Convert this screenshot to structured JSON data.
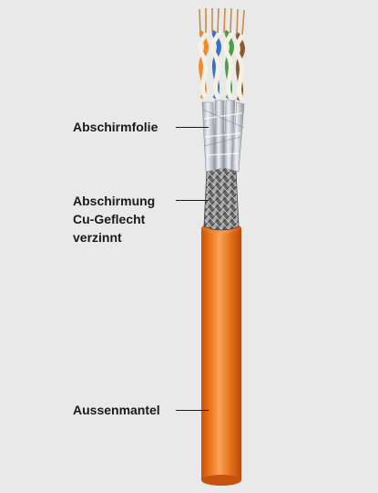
{
  "labels": {
    "foil": "Abschirmfolie",
    "braid": [
      "Abschirmung",
      "Cu-Geflecht",
      "verzinnt"
    ],
    "jacket": "Aussenmantel"
  },
  "colors": {
    "background": "#e9e9e9",
    "jacket": "#e8741c",
    "braid": "#8a8a8a",
    "foil": "#c9ccd2",
    "pair_orange": "#f08a2c",
    "pair_green": "#4aa04a",
    "pair_blue": "#3a6fc8",
    "pair_brown": "#8a5a2a",
    "pair_white": "#f4f0e6"
  }
}
